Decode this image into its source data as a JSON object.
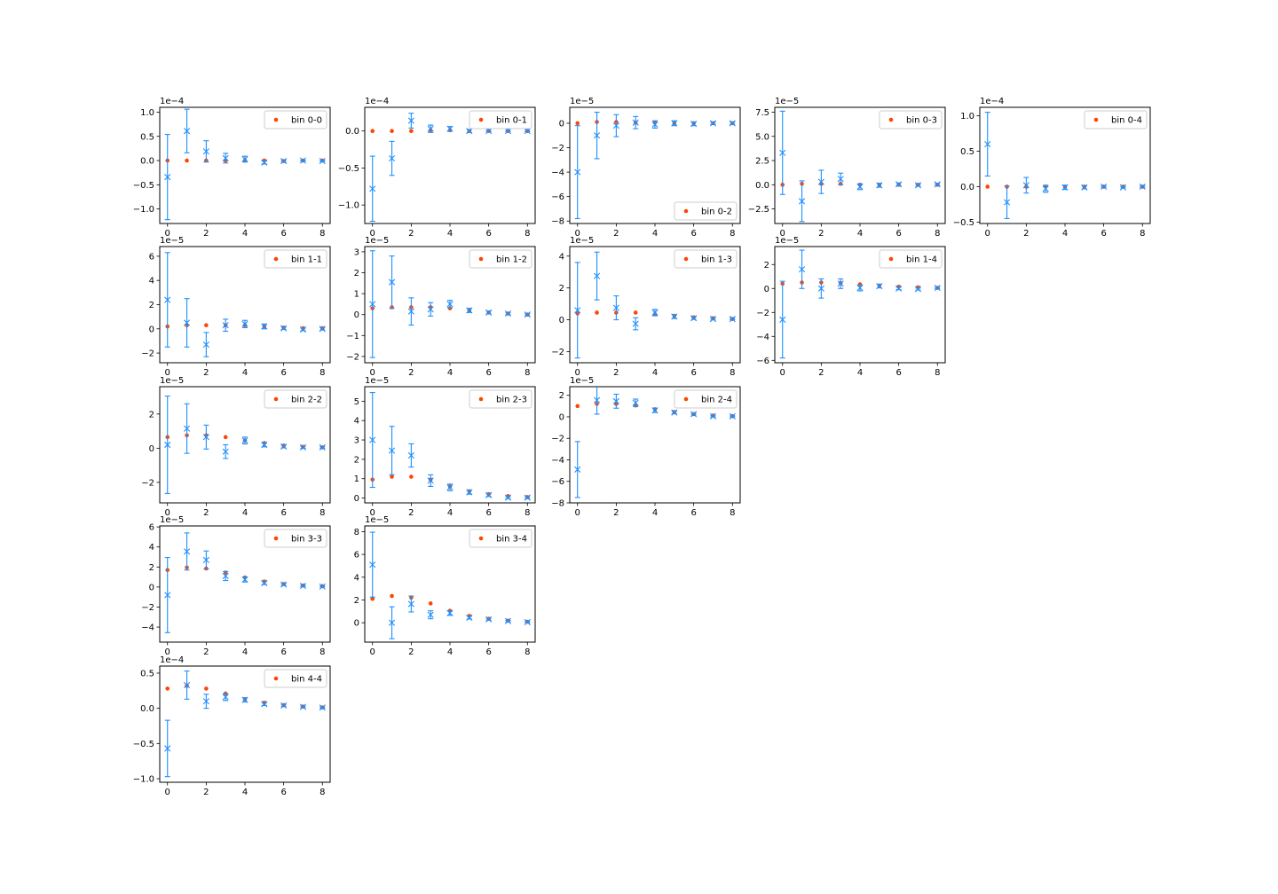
{
  "colors": {
    "model": "#ff4500",
    "data": "#1e90ff",
    "axes": "#000000"
  },
  "markers": {
    "model": "dot",
    "data": "x"
  },
  "x_ticks": [
    0,
    2,
    4,
    6,
    8
  ],
  "chart_data": [
    {
      "type": "scatter",
      "label": "bin 0-0",
      "exponent": "1e−4",
      "scale": 0.0001,
      "legend": "upper-right",
      "ylim": [
        -1.3,
        1.1
      ],
      "yticks": [
        1.0,
        0.5,
        0.0,
        -0.5,
        -1.0
      ],
      "ytick_labels": [
        "1.0",
        "0.5",
        "0.0",
        "−0.5",
        "−1.0"
      ],
      "x": [
        0,
        1,
        2,
        3,
        4,
        5,
        6,
        7,
        8
      ],
      "model": [
        0.0,
        0.0,
        0.0,
        0.0,
        0.0,
        0.0,
        -0.01,
        0.0,
        0.0
      ],
      "data": [
        -0.34,
        0.61,
        0.19,
        0.05,
        0.03,
        -0.04,
        -0.01,
        0.0,
        -0.01
      ],
      "err": [
        0.88,
        0.45,
        0.22,
        0.1,
        0.06,
        0.03,
        0.02,
        0.01,
        0.01
      ]
    },
    {
      "type": "scatter",
      "label": "bin 0-1",
      "exponent": "1e−4",
      "scale": 0.0001,
      "legend": "upper-right",
      "ylim": [
        -1.25,
        0.32
      ],
      "yticks": [
        0.0,
        -0.5,
        -1.0
      ],
      "ytick_labels": [
        "0.0",
        "−0.5",
        "−1.0"
      ],
      "x": [
        0,
        1,
        2,
        3,
        4,
        5,
        6,
        7,
        8
      ],
      "model": [
        0.0,
        0.0,
        0.0,
        0.01,
        0.01,
        0.0,
        0.0,
        0.0,
        0.0
      ],
      "data": [
        -0.78,
        -0.37,
        0.14,
        0.03,
        0.03,
        0.0,
        0.0,
        0.0,
        0.0
      ],
      "err": [
        0.44,
        0.23,
        0.1,
        0.05,
        0.03,
        0.02,
        0.01,
        0.01,
        0.01
      ]
    },
    {
      "type": "scatter",
      "label": "bin 0-2",
      "exponent": "1e−5",
      "scale": 1e-05,
      "legend": "lower-right",
      "ylim": [
        -8.2,
        1.3
      ],
      "yticks": [
        0,
        -2,
        -4,
        -6,
        -8
      ],
      "ytick_labels": [
        "0",
        "−2",
        "−4",
        "−6",
        "−8"
      ],
      "x": [
        0,
        1,
        2,
        3,
        4,
        5,
        6,
        7,
        8
      ],
      "model": [
        0.0,
        0.1,
        0.1,
        0.05,
        0.05,
        0.0,
        0.0,
        0.0,
        0.0
      ],
      "data": [
        -4.0,
        -1.0,
        -0.2,
        0.05,
        -0.1,
        0.0,
        -0.05,
        0.0,
        0.0
      ],
      "err": [
        3.8,
        1.9,
        0.9,
        0.5,
        0.3,
        0.2,
        0.15,
        0.1,
        0.1
      ]
    },
    {
      "type": "scatter",
      "label": "bin 0-3",
      "exponent": "1e−5",
      "scale": 1e-05,
      "legend": "upper-right",
      "ylim": [
        -4.0,
        8.0
      ],
      "yticks": [
        7.5,
        5.0,
        2.5,
        0.0,
        -2.5
      ],
      "ytick_labels": [
        "7.5",
        "5.0",
        "2.5",
        "0.0",
        "−2.5"
      ],
      "x": [
        0,
        1,
        2,
        3,
        4,
        5,
        6,
        7,
        8
      ],
      "model": [
        0.0,
        0.1,
        0.1,
        0.1,
        0.0,
        0.0,
        0.0,
        0.0,
        0.0
      ],
      "data": [
        3.3,
        -1.7,
        0.3,
        0.6,
        -0.2,
        -0.05,
        0.05,
        -0.05,
        0.05
      ],
      "err": [
        4.3,
        2.1,
        1.2,
        0.6,
        0.3,
        0.2,
        0.15,
        0.1,
        0.1
      ]
    },
    {
      "type": "scatter",
      "label": "bin 0-4",
      "exponent": "1e−4",
      "scale": 0.0001,
      "legend": "upper-right",
      "ylim": [
        -0.52,
        1.12
      ],
      "yticks": [
        1.0,
        0.5,
        0.0,
        -0.5
      ],
      "ytick_labels": [
        "1.0",
        "0.5",
        "0.0",
        "−0.5"
      ],
      "x": [
        0,
        1,
        2,
        3,
        4,
        5,
        6,
        7,
        8
      ],
      "model": [
        0.0,
        0.0,
        0.0,
        0.0,
        0.0,
        0.0,
        0.0,
        0.0,
        0.0
      ],
      "data": [
        0.6,
        -0.22,
        0.02,
        -0.03,
        -0.01,
        -0.01,
        0.0,
        -0.01,
        0.0
      ],
      "err": [
        0.45,
        0.23,
        0.11,
        0.05,
        0.03,
        0.02,
        0.01,
        0.01,
        0.01
      ]
    },
    {
      "type": "scatter",
      "label": "bin 1-1",
      "exponent": "1e−5",
      "scale": 1e-05,
      "legend": "upper-right",
      "ylim": [
        -2.8,
        6.8
      ],
      "yticks": [
        6,
        4,
        2,
        0,
        -2
      ],
      "ytick_labels": [
        "6",
        "4",
        "2",
        "0",
        "−2"
      ],
      "x": [
        0,
        1,
        2,
        3,
        4,
        5,
        6,
        7,
        8
      ],
      "model": [
        0.2,
        0.3,
        0.3,
        0.3,
        0.3,
        0.2,
        0.1,
        0.05,
        0.05
      ],
      "data": [
        2.4,
        0.5,
        -1.3,
        0.3,
        0.4,
        0.2,
        0.05,
        -0.05,
        0.0
      ],
      "err": [
        3.9,
        2.0,
        1.0,
        0.5,
        0.3,
        0.2,
        0.1,
        0.1,
        0.1
      ]
    },
    {
      "type": "scatter",
      "label": "bin 1-2",
      "exponent": "1e−5",
      "scale": 1e-05,
      "legend": "upper-right",
      "ylim": [
        -2.3,
        3.25
      ],
      "yticks": [
        3,
        2,
        1,
        0,
        -1,
        -2
      ],
      "ytick_labels": [
        "3",
        "2",
        "1",
        "0",
        "−1",
        "−2"
      ],
      "x": [
        0,
        1,
        2,
        3,
        4,
        5,
        6,
        7,
        8
      ],
      "model": [
        0.3,
        0.35,
        0.35,
        0.35,
        0.3,
        0.2,
        0.1,
        0.05,
        0.0
      ],
      "data": [
        0.5,
        1.55,
        0.15,
        0.25,
        0.5,
        0.2,
        0.1,
        0.05,
        0.0
      ],
      "err": [
        2.55,
        1.25,
        0.65,
        0.32,
        0.18,
        0.1,
        0.07,
        0.05,
        0.05
      ]
    },
    {
      "type": "scatter",
      "label": "bin 1-3",
      "exponent": "1e−5",
      "scale": 1e-05,
      "legend": "upper-right",
      "ylim": [
        -2.7,
        4.6
      ],
      "yticks": [
        4,
        2,
        0,
        -2
      ],
      "ytick_labels": [
        "4",
        "2",
        "0",
        "−2"
      ],
      "x": [
        0,
        1,
        2,
        3,
        4,
        5,
        6,
        7,
        8
      ],
      "model": [
        0.4,
        0.45,
        0.45,
        0.45,
        0.35,
        0.25,
        0.15,
        0.1,
        0.05
      ],
      "data": [
        0.6,
        2.75,
        0.75,
        -0.25,
        0.45,
        0.2,
        0.1,
        0.05,
        0.05
      ],
      "err": [
        3.0,
        1.5,
        0.75,
        0.38,
        0.2,
        0.12,
        0.08,
        0.06,
        0.05
      ]
    },
    {
      "type": "scatter",
      "label": "bin 1-4",
      "exponent": "1e−5",
      "scale": 1e-05,
      "legend": "upper-right",
      "ylim": [
        -6.2,
        3.5
      ],
      "yticks": [
        2,
        0,
        -2,
        -4,
        -6
      ],
      "ytick_labels": [
        "2",
        "0",
        "−2",
        "−4",
        "−6"
      ],
      "x": [
        0,
        1,
        2,
        3,
        4,
        5,
        6,
        7,
        8
      ],
      "model": [
        0.4,
        0.5,
        0.5,
        0.45,
        0.35,
        0.25,
        0.15,
        0.1,
        0.05
      ],
      "data": [
        -2.6,
        1.6,
        0.0,
        0.4,
        0.05,
        0.2,
        0.0,
        -0.05,
        0.05
      ],
      "err": [
        3.2,
        1.6,
        0.8,
        0.4,
        0.25,
        0.15,
        0.1,
        0.08,
        0.06
      ]
    },
    {
      "type": "scatter",
      "label": "bin 2-2",
      "exponent": "1e−5",
      "scale": 1e-05,
      "legend": "upper-right",
      "ylim": [
        -3.2,
        3.6
      ],
      "yticks": [
        2,
        0,
        -2
      ],
      "ytick_labels": [
        "2",
        "0",
        "−2"
      ],
      "x": [
        0,
        1,
        2,
        3,
        4,
        5,
        6,
        7,
        8
      ],
      "model": [
        0.65,
        0.75,
        0.75,
        0.65,
        0.45,
        0.3,
        0.15,
        0.08,
        0.05
      ],
      "data": [
        0.2,
        1.15,
        0.65,
        -0.2,
        0.45,
        0.2,
        0.1,
        0.05,
        0.05
      ],
      "err": [
        2.85,
        1.45,
        0.7,
        0.4,
        0.2,
        0.12,
        0.08,
        0.06,
        0.05
      ]
    },
    {
      "type": "scatter",
      "label": "bin 2-3",
      "exponent": "1e−5",
      "scale": 1e-05,
      "legend": "upper-right",
      "ylim": [
        -0.25,
        5.75
      ],
      "yticks": [
        5,
        4,
        3,
        2,
        1,
        0
      ],
      "ytick_labels": [
        "5",
        "4",
        "3",
        "2",
        "1",
        "0"
      ],
      "x": [
        0,
        1,
        2,
        3,
        4,
        5,
        6,
        7,
        8
      ],
      "model": [
        0.95,
        1.1,
        1.1,
        0.95,
        0.6,
        0.35,
        0.2,
        0.1,
        0.05
      ],
      "data": [
        3.0,
        2.45,
        2.2,
        0.9,
        0.55,
        0.3,
        0.15,
        0.02,
        0.02
      ],
      "err": [
        2.45,
        1.25,
        0.6,
        0.3,
        0.17,
        0.1,
        0.07,
        0.05,
        0.05
      ]
    },
    {
      "type": "scatter",
      "label": "bin 2-4",
      "exponent": "1e−5",
      "scale": 1e-05,
      "legend": "upper-right",
      "ylim": [
        -8.0,
        2.8
      ],
      "yticks": [
        2,
        0,
        -2,
        -4,
        -6,
        -8
      ],
      "ytick_labels": [
        "2",
        "0",
        "−2",
        "−4",
        "−6",
        "−8"
      ],
      "x": [
        0,
        1,
        2,
        3,
        4,
        5,
        6,
        7,
        8
      ],
      "model": [
        1.0,
        1.2,
        1.2,
        1.05,
        0.7,
        0.45,
        0.25,
        0.12,
        0.06
      ],
      "data": [
        -4.9,
        1.55,
        1.45,
        1.3,
        0.6,
        0.4,
        0.25,
        0.05,
        0.05
      ],
      "err": [
        2.6,
        1.3,
        0.65,
        0.35,
        0.2,
        0.12,
        0.08,
        0.06,
        0.05
      ]
    },
    {
      "type": "scatter",
      "label": "bin 3-3",
      "exponent": "1e−5",
      "scale": 1e-05,
      "legend": "upper-right",
      "ylim": [
        -5.5,
        6.1
      ],
      "yticks": [
        6,
        4,
        2,
        0,
        -2,
        -4
      ],
      "ytick_labels": [
        "6",
        "4",
        "2",
        "0",
        "−2",
        "−4"
      ],
      "x": [
        0,
        1,
        2,
        3,
        4,
        5,
        6,
        7,
        8
      ],
      "model": [
        1.7,
        1.95,
        1.85,
        1.45,
        0.95,
        0.55,
        0.3,
        0.15,
        0.08
      ],
      "data": [
        -0.8,
        3.55,
        2.7,
        1.1,
        0.75,
        0.4,
        0.25,
        0.12,
        0.05
      ],
      "err": [
        3.75,
        1.85,
        0.9,
        0.45,
        0.25,
        0.15,
        0.1,
        0.07,
        0.05
      ]
    },
    {
      "type": "scatter",
      "label": "bin 3-4",
      "exponent": "1e−5",
      "scale": 1e-05,
      "legend": "upper-right",
      "ylim": [
        -1.7,
        8.5
      ],
      "yticks": [
        8,
        6,
        4,
        2,
        0
      ],
      "ytick_labels": [
        "8",
        "6",
        "4",
        "2",
        "0"
      ],
      "x": [
        0,
        1,
        2,
        3,
        4,
        5,
        6,
        7,
        8
      ],
      "model": [
        2.1,
        2.35,
        2.2,
        1.7,
        1.05,
        0.6,
        0.35,
        0.18,
        0.09
      ],
      "data": [
        5.1,
        0.0,
        1.65,
        0.7,
        0.85,
        0.45,
        0.3,
        0.15,
        0.05
      ],
      "err": [
        2.85,
        1.4,
        0.7,
        0.35,
        0.2,
        0.12,
        0.08,
        0.06,
        0.05
      ]
    },
    {
      "type": "scatter",
      "label": "bin 4-4",
      "exponent": "1e−4",
      "scale": 0.0001,
      "legend": "upper-right",
      "ylim": [
        -1.05,
        0.6
      ],
      "yticks": [
        0.5,
        0.0,
        -0.5,
        -1.0
      ],
      "ytick_labels": [
        "0.5",
        "0.0",
        "−0.5",
        "−1.0"
      ],
      "x": [
        0,
        1,
        2,
        3,
        4,
        5,
        6,
        7,
        8
      ],
      "model": [
        0.28,
        0.32,
        0.28,
        0.21,
        0.13,
        0.08,
        0.045,
        0.025,
        0.012
      ],
      "data": [
        -0.57,
        0.33,
        0.1,
        0.16,
        0.12,
        0.06,
        0.04,
        0.02,
        0.01
      ],
      "err": [
        0.4,
        0.2,
        0.1,
        0.05,
        0.03,
        0.02,
        0.015,
        0.01,
        0.01
      ]
    }
  ]
}
